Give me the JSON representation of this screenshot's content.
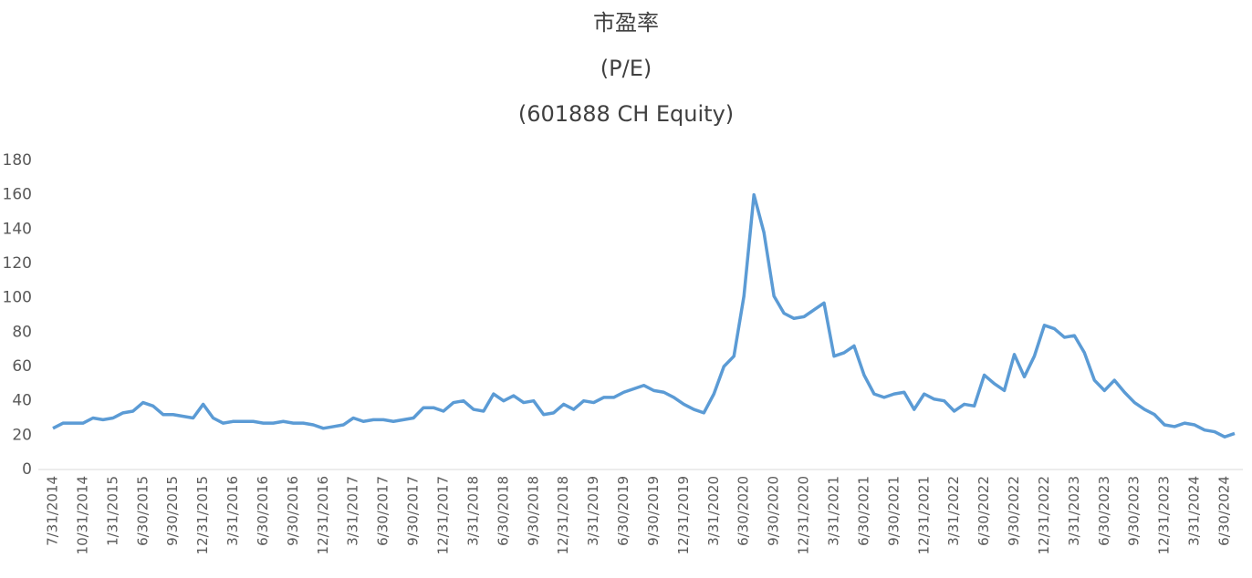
{
  "chart_data": {
    "type": "line",
    "title": "市盈率",
    "subtitle": "(P/E)",
    "subtitle2": "(601888 CH Equity)",
    "categories": [
      "7/31/2014",
      null,
      null,
      "10/31/2014",
      null,
      null,
      "1/31/2015",
      null,
      null,
      "6/30/2015",
      null,
      null,
      "9/30/2015",
      null,
      null,
      "12/31/2015",
      null,
      null,
      "3/31/2016",
      null,
      null,
      "6/30/2016",
      null,
      null,
      "9/30/2016",
      null,
      null,
      "12/31/2016",
      null,
      null,
      "3/31/2017",
      null,
      null,
      "6/30/2017",
      null,
      null,
      "9/30/2017",
      null,
      null,
      "12/31/2017",
      null,
      null,
      "3/31/2018",
      null,
      null,
      "6/30/2018",
      null,
      null,
      "9/30/2018",
      null,
      null,
      "12/31/2018",
      null,
      null,
      "3/31/2019",
      null,
      null,
      "6/30/2019",
      null,
      null,
      "9/30/2019",
      null,
      null,
      "12/31/2019",
      null,
      null,
      "3/31/2020",
      null,
      null,
      "6/30/2020",
      null,
      null,
      "9/30/2020",
      null,
      null,
      "12/31/2020",
      null,
      null,
      "3/31/2021",
      null,
      null,
      "6/30/2021",
      null,
      null,
      "9/30/2021",
      null,
      null,
      "12/31/2021",
      null,
      null,
      "3/31/2022",
      null,
      null,
      "6/30/2022",
      null,
      null,
      "9/30/2022",
      null,
      null,
      "12/31/2022",
      null,
      null,
      "3/31/2023",
      null,
      null,
      "6/30/2023",
      null,
      null,
      "9/30/2023",
      null,
      null,
      "12/31/2023",
      null,
      null,
      "3/31/2024",
      null,
      null,
      "6/30/2024",
      null
    ],
    "values": [
      24,
      27,
      27,
      27,
      30,
      29,
      30,
      33,
      34,
      39,
      37,
      32,
      32,
      31,
      30,
      38,
      30,
      27,
      28,
      28,
      28,
      27,
      27,
      28,
      27,
      27,
      26,
      24,
      25,
      26,
      30,
      28,
      29,
      29,
      28,
      29,
      30,
      36,
      36,
      34,
      39,
      40,
      35,
      34,
      44,
      40,
      43,
      39,
      40,
      32,
      33,
      38,
      35,
      40,
      39,
      42,
      42,
      45,
      47,
      49,
      46,
      45,
      42,
      38,
      35,
      33,
      44,
      60,
      66,
      101,
      160,
      138,
      101,
      91,
      88,
      89,
      93,
      97,
      66,
      68,
      72,
      55,
      44,
      42,
      44,
      45,
      35,
      44,
      41,
      40,
      34,
      38,
      37,
      55,
      50,
      46,
      67,
      54,
      66,
      84,
      82,
      77,
      78,
      68,
      52,
      46,
      52,
      45,
      39,
      35,
      32,
      26,
      25,
      27,
      26,
      23,
      22,
      19,
      21
    ],
    "color": "#5b9bd5",
    "ylim": [
      0,
      180
    ],
    "yticks": [
      0,
      20,
      40,
      60,
      80,
      100,
      120,
      140,
      160,
      180
    ],
    "grid": false
  }
}
